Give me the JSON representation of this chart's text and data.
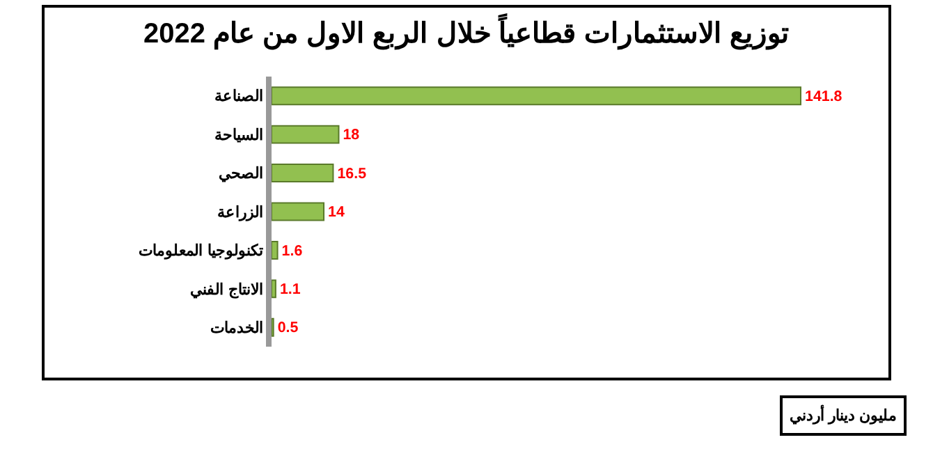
{
  "chart_data": {
    "type": "bar",
    "orientation": "horizontal",
    "title": "توزيع الاستثمارات قطاعياً خلال الربع الاول من عام 2022",
    "categories": [
      "الصناعة",
      "السياحة",
      "الصحي",
      "الزراعة",
      "تكنولوجيا المعلومات",
      "الانتاج الفني",
      "الخدمات"
    ],
    "values": [
      141.8,
      18,
      16.5,
      14,
      1.6,
      1.1,
      0.5
    ],
    "color": "#92c050",
    "data_labels": true,
    "tick_labels": "y",
    "legend": false,
    "annotations": [
      "مليون دينار أردني"
    ]
  }
}
